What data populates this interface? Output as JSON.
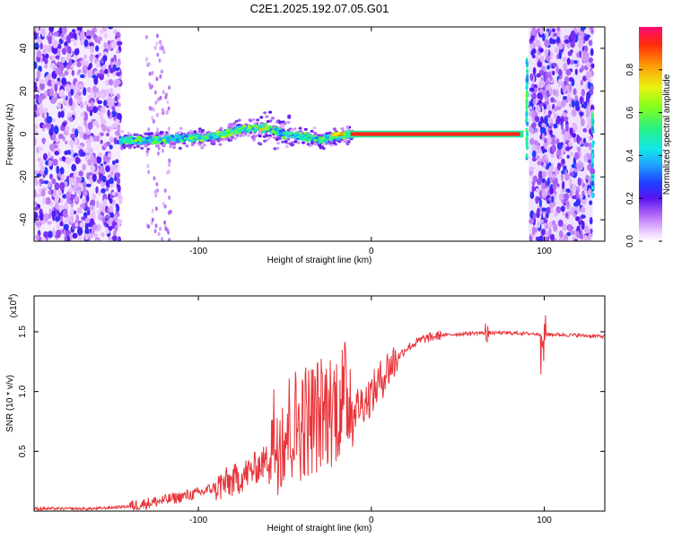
{
  "title": "C2E1.2025.192.07.05.G01",
  "chart_data": [
    {
      "type": "heatmap",
      "xlabel": "Height of straight line (km)",
      "ylabel": "Frequency (Hz)",
      "xlim": [
        -195,
        135
      ],
      "ylim": [
        -50,
        50
      ],
      "xticks": [
        -100,
        0,
        100
      ],
      "xtick_labels": [
        "-100",
        "0",
        "100"
      ],
      "yticks": [
        -40,
        -20,
        0,
        20,
        40
      ],
      "ytick_labels": [
        "-40",
        "-20",
        "0",
        "20",
        "40"
      ],
      "colorbar": {
        "label": "Normalized spectral amplitude",
        "range": [
          0,
          1
        ],
        "ticks": [
          0.0,
          0.2,
          0.4,
          0.6,
          0.8
        ],
        "tick_labels": [
          "0.0",
          "0.2",
          "0.4",
          "0.6",
          "0.8"
        ],
        "colors": [
          "#ffffff",
          "#e9c6ff",
          "#9a3cf2",
          "#3a1cff",
          "#1f8dff",
          "#14e8e8",
          "#25f08a",
          "#7cff1e",
          "#e9f20d",
          "#ff9a0a",
          "#ff2a0a",
          "#ff0a78"
        ]
      },
      "trace": {
        "x": [
          -145,
          -130,
          -110,
          -90,
          -75,
          -60,
          -50,
          -40,
          -30,
          -20,
          -10,
          0,
          20,
          40,
          60,
          80,
          88
        ],
        "y": [
          -3,
          -3,
          -2,
          -1,
          2,
          3,
          0,
          -1,
          -3,
          -1,
          0,
          0,
          0,
          0,
          0,
          0,
          0
        ]
      }
    },
    {
      "type": "line",
      "xlabel": "Height of straight line (km)",
      "ylabel": "SNR (10 * v/v)",
      "multiplier": "(x10",
      "multiplier_exp": "4",
      "multiplier_close": ")",
      "xlim": [
        -195,
        135
      ],
      "ylim": [
        0,
        1.8
      ],
      "xticks": [
        -100,
        0,
        100
      ],
      "xtick_labels": [
        "-100",
        "0",
        "100"
      ],
      "yticks": [
        0.5,
        1.0,
        1.5
      ],
      "ytick_labels": [
        "0.5",
        "1.0",
        "1.5"
      ],
      "color": "#e8343a",
      "x": [
        -195,
        -160,
        -140,
        -120,
        -100,
        -80,
        -70,
        -60,
        -50,
        -40,
        -30,
        -20,
        -10,
        0,
        10,
        20,
        30,
        40,
        60,
        80,
        100,
        120,
        135
      ],
      "y": [
        0.02,
        0.02,
        0.04,
        0.09,
        0.15,
        0.25,
        0.33,
        0.43,
        0.52,
        0.6,
        0.66,
        0.74,
        0.85,
        0.97,
        1.2,
        1.36,
        1.44,
        1.47,
        1.49,
        1.49,
        1.48,
        1.47,
        1.46
      ]
    }
  ]
}
